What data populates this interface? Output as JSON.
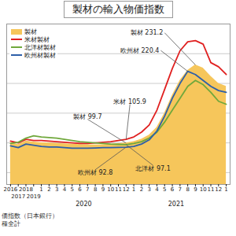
{
  "chart_data": {
    "type": "line",
    "title": "製材の輸入物価指数",
    "categories": [
      "2016",
      "2017",
      "2018",
      "2019",
      "1",
      "2",
      "3",
      "4",
      "5",
      "6",
      "7",
      "8",
      "9",
      "10",
      "11",
      "12",
      "1",
      "2",
      "3",
      "4",
      "5",
      "6",
      "7",
      "8",
      "9",
      "10",
      "11",
      "12",
      "1"
    ],
    "category_groups": [
      null,
      null,
      null,
      null,
      "2020",
      "2020",
      "2020",
      "2020",
      "2020",
      "2020",
      "2020",
      "2020",
      "2020",
      "2020",
      "2020",
      "2020",
      "2021",
      "2021",
      "2021",
      "2021",
      "2021",
      "2021",
      "2021",
      "2021",
      "2021",
      "2021",
      "2021",
      "2021",
      null
    ],
    "series": [
      {
        "name": "製材",
        "type": "area",
        "color": "#f6c65b",
        "values": [
          100.5,
          97.2,
          103.1,
          101.4,
          100.2,
          99.8,
          99.3,
          98.6,
          97.9,
          97.1,
          96.8,
          96.5,
          97.0,
          97.8,
          98.9,
          99.7,
          102,
          106,
          113,
          126,
          150,
          180,
          205,
          222,
          231.2,
          226,
          212,
          200,
          195
        ]
      },
      {
        "name": "米材製材",
        "type": "line",
        "color": "#e02020",
        "values": [
          103,
          100,
          106,
          104,
          104,
          103,
          102,
          101,
          100,
          99,
          99,
          100,
          101,
          102,
          104,
          105.9,
          110,
          118,
          130,
          155,
          190,
          225,
          255,
          270,
          272,
          266,
          235,
          228,
          215
        ]
      },
      {
        "name": "北洋材製材",
        "type": "line",
        "color": "#70a83c",
        "values": [
          99,
          101,
          108,
          112,
          110,
          109,
          108,
          106,
          104,
          102,
          101,
          100,
          99,
          98,
          97.5,
          97.1,
          99,
          102,
          108,
          118,
          135,
          155,
          175,
          195,
          205,
          198,
          185,
          170,
          165
        ]
      },
      {
        "name": "欧州材製材",
        "type": "line",
        "color": "#2e5fa8",
        "values": [
          95,
          92,
          98,
          96,
          94,
          93,
          93,
          92,
          91,
          91,
          91,
          91.5,
          92,
          92,
          92.5,
          92.8,
          94,
          98,
          105,
          120,
          145,
          175,
          200,
          220.4,
          215,
          205,
          195,
          188,
          185
        ]
      }
    ],
    "ylim": [
      30,
      300
    ],
    "yticks": [
      50,
      100,
      150,
      200,
      250,
      300
    ],
    "grid": true,
    "tick_labels": "x",
    "legend": "top-left",
    "annotations": [
      {
        "series": "製材",
        "text": "製材",
        "value": 231.2
      },
      {
        "series": "欧州材製材",
        "text": "欧州材",
        "value": 220.4
      },
      {
        "series": "製材",
        "text": "製材",
        "value": 99.7
      },
      {
        "series": "米材製材",
        "text": "米材",
        "value": 105.9
      },
      {
        "series": "欧州材製材",
        "text": "欧州材",
        "value": 92.8
      },
      {
        "series": "北洋材製材",
        "text": "北洋材",
        "value": 97.1
      }
    ],
    "notes": [
      "価指数（日本銀行）",
      "種全計"
    ]
  }
}
